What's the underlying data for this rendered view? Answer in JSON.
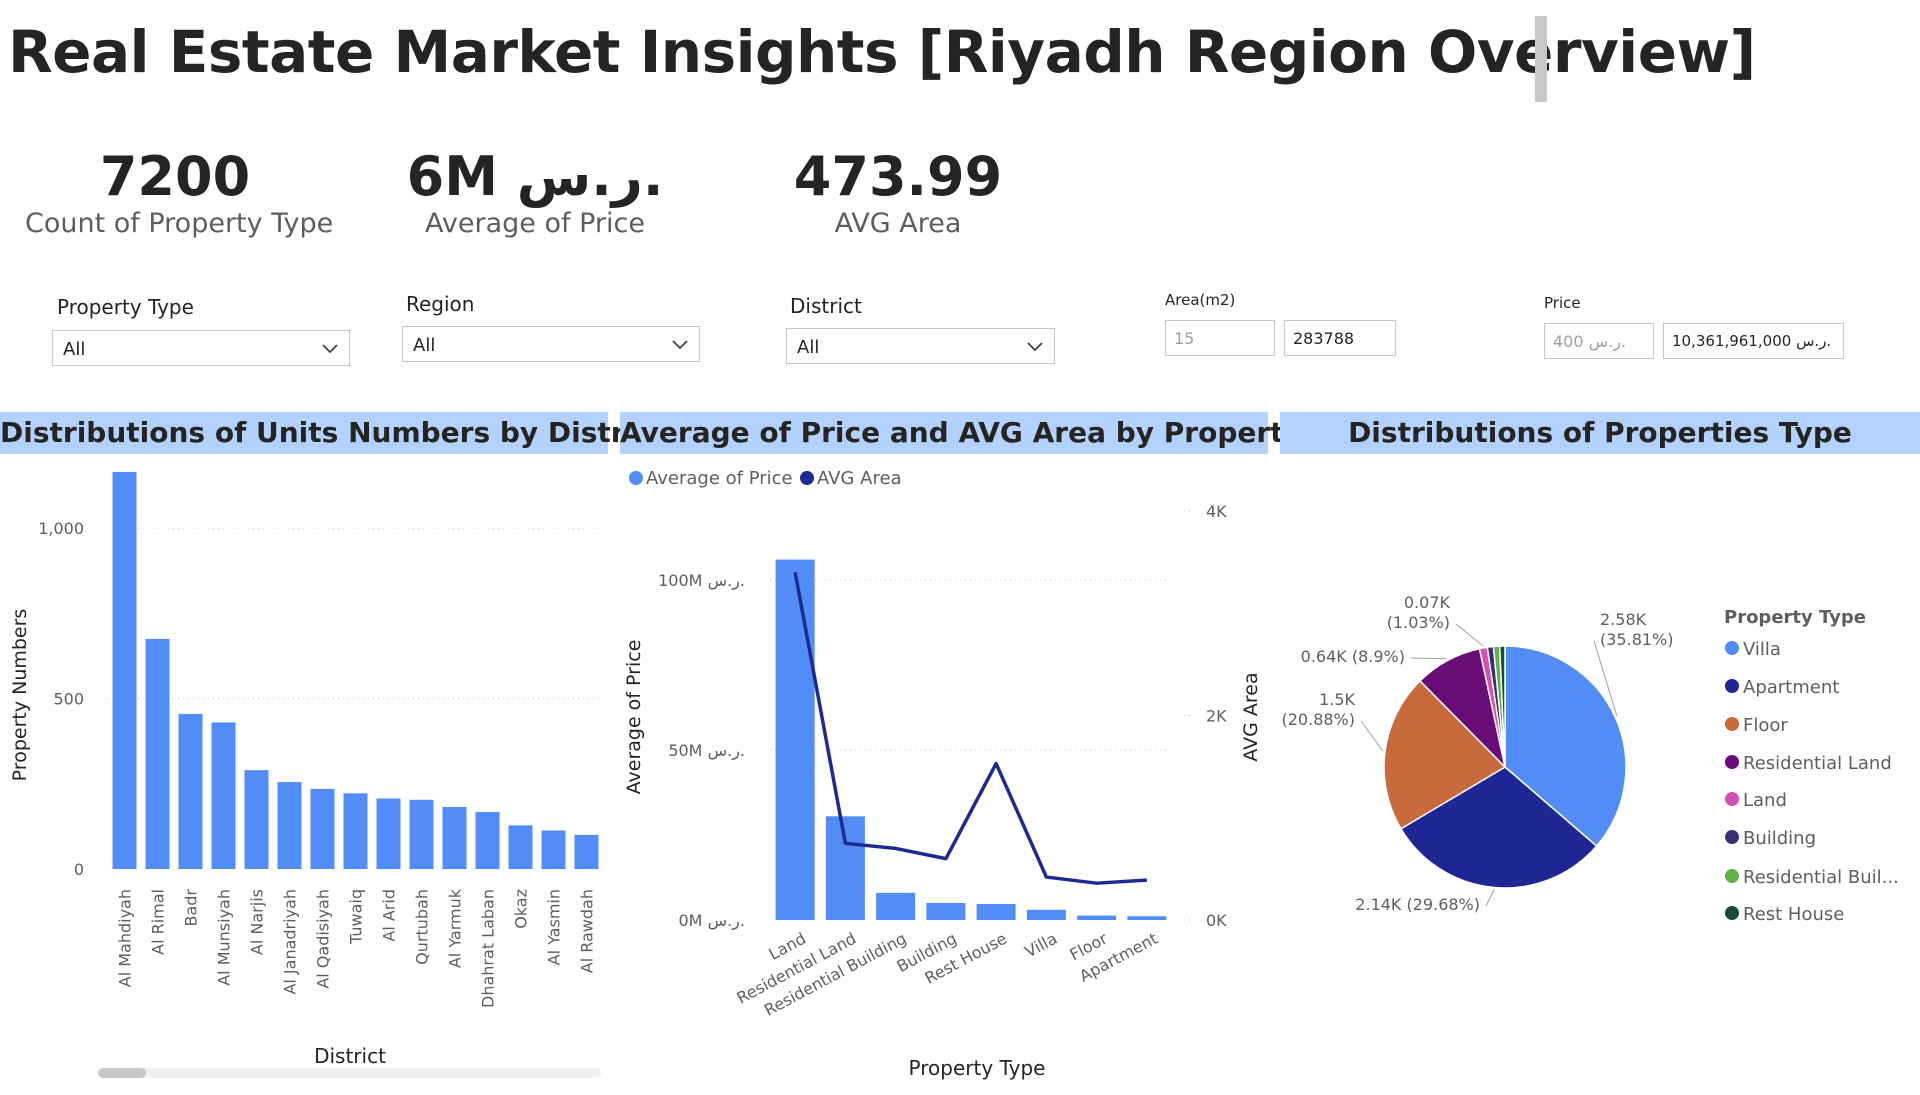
{
  "page": {
    "title": "Real Estate Market Insights [Riyadh Region Overview]"
  },
  "kpis": [
    {
      "value": "7200",
      "label": "Count of Property Type"
    },
    {
      "value": "6M ر.س.",
      "label": "Average of Price"
    },
    {
      "value": "473.99",
      "label": "AVG Area"
    }
  ],
  "slicers": {
    "property_type": {
      "title": "Property Type",
      "value": "All"
    },
    "region": {
      "title": "Region",
      "value": "All"
    },
    "district": {
      "title": "District",
      "value": "All"
    },
    "area": {
      "title": "Area(m2)",
      "min": "15",
      "max": "283788"
    },
    "price": {
      "title": "Price",
      "min": "400 ر.س.",
      "max": "10,361,961,000 ر.س."
    }
  },
  "headers": {
    "district": "Distributions of Units Numbers by District",
    "price_area": "Average of Price and AVG Area by Property Type",
    "types": "Distributions of Properties Type"
  },
  "colors": {
    "header_bg": "#b4d2ff",
    "bar": "#518cf7",
    "line": "#1e2a8f"
  },
  "chart_data": [
    {
      "type": "bar",
      "xlabel": "District",
      "ylabel": "Property Numbers",
      "ylim": [
        0,
        1200
      ],
      "yticks": [
        0,
        500,
        1000
      ],
      "ytick_labels": [
        "0",
        "500",
        "1,000"
      ],
      "categories": [
        "Al Mahdiyah",
        "Al Rimal",
        "Badr",
        "Al Munsiyah",
        "Al Narjis",
        "Al Janadriyah",
        "Al Qadisiyah",
        "Tuwaiq",
        "Al Arid",
        "Qurtubah",
        "Al Yarmuk",
        "Dhahrat Laban",
        "Okaz",
        "Al Yasmin",
        "Al Rawdah"
      ],
      "values": [
        1165,
        675,
        455,
        430,
        290,
        255,
        235,
        222,
        207,
        203,
        182,
        167,
        128,
        113,
        100
      ],
      "grid": true
    },
    {
      "type": "bar+line",
      "xlabel": "Property Type",
      "ylabel": "Average of Price",
      "ylabel_right": "AVG Area",
      "categories": [
        "Land",
        "Residential Land",
        "Residential Building",
        "Building",
        "Rest House",
        "Villa",
        "Floor",
        "Apartment"
      ],
      "series": [
        {
          "name": "Average of Price",
          "axis": "left",
          "kind": "bar",
          "values": [
            106000000,
            30500000,
            8000000,
            5000000,
            4700000,
            3000000,
            1300000,
            1100000
          ]
        },
        {
          "name": "AVG Area",
          "axis": "right",
          "kind": "line",
          "values": [
            3400,
            750,
            700,
            600,
            1530,
            420,
            360,
            390
          ]
        }
      ],
      "ylim": [
        0,
        120000000
      ],
      "yticks": [
        0,
        50000000,
        100000000
      ],
      "ytick_labels": [
        "0M ر.س.",
        "50M ر.س.",
        "100M ر.س."
      ],
      "ylim_right": [
        0,
        4000
      ],
      "yticks_right": [
        0,
        2000,
        4000
      ],
      "ytick_labels_right": [
        "0K",
        "2K",
        "4K"
      ],
      "legend": "top-left",
      "grid": true
    },
    {
      "type": "pie",
      "legend_title": "Property Type",
      "legend": "right",
      "slices": [
        {
          "name": "Villa",
          "value": 2580,
          "label": "2.58K (35.81%)",
          "color": "#518cf7"
        },
        {
          "name": "Apartment",
          "value": 2140,
          "label": "2.14K (29.68%)",
          "color": "#1f2794"
        },
        {
          "name": "Floor",
          "value": 1500,
          "label": "1.5K (20.88%)",
          "color": "#c96a3c"
        },
        {
          "name": "Residential Land",
          "value": 640,
          "label": "0.64K (8.9%)",
          "color": "#6a0c76"
        },
        {
          "name": "Land",
          "value": 74,
          "label": "0.07K (1.03%)",
          "color": "#d54fb0"
        },
        {
          "name": "Building",
          "value": 58,
          "label": "",
          "color": "#3b2f6e"
        },
        {
          "name": "Residential Buil...",
          "value": 58,
          "label": "",
          "color": "#5fb14c"
        },
        {
          "name": "Rest House",
          "value": 50,
          "label": "",
          "color": "#1e4a3c"
        }
      ]
    }
  ]
}
